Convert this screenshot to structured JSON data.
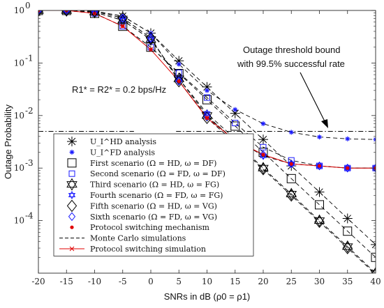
{
  "chart_data": {
    "type": "line",
    "yscale": "log",
    "xlabel": "SNRs in dB (ρ0 = ρ1)",
    "ylabel": "Outage Probability",
    "xlim": [
      -20,
      40
    ],
    "ylim": [
      1e-05,
      1
    ],
    "grid": false,
    "legend_position": "lower-left",
    "x_ticks": [
      "-20",
      "-10",
      "0",
      "10",
      "20",
      "30",
      "40"
    ],
    "x_ticks_extra": [
      "-15",
      "-5",
      "5",
      "15",
      "25",
      "35"
    ],
    "y_ticks": [
      {
        "base": "10",
        "exp": "0",
        "value": 1
      },
      {
        "base": "10",
        "exp": "-1",
        "value": 0.1
      },
      {
        "base": "10",
        "exp": "-2",
        "value": 0.01
      },
      {
        "base": "10",
        "exp": "-3",
        "value": 0.001
      },
      {
        "base": "10",
        "exp": "-4",
        "value": 0.0001
      }
    ],
    "annotations": {
      "rate_label": "R1* = R2* = 0.2 bps/Hz",
      "threshold_line1": "Outage threshold bound",
      "threshold_line2": "with 99.5% successful rate",
      "threshold_value": 0.005
    },
    "legend": [
      {
        "label": "U_I^HD analysis",
        "marker": "asterisk",
        "color": "#000000"
      },
      {
        "label": "U_I^FD analysis",
        "marker": "star",
        "color": "#1a1aff"
      },
      {
        "label": "First scenario (Ω = HD, ω = DF)",
        "marker": "square",
        "color": "#000000"
      },
      {
        "label": "Second scenario (Ω = FD, ω = DF)",
        "marker": "square",
        "color": "#1a1aff"
      },
      {
        "label": "Third scenario (Ω = HD, ω = FG)",
        "marker": "hexagram",
        "color": "#000000"
      },
      {
        "label": "Fourth scenario (Ω = FD, ω = FG)",
        "marker": "hexagram",
        "color": "#1a1aff"
      },
      {
        "label": "Fifth scenario (Ω = HD, ω = VG)",
        "marker": "diamond",
        "color": "#000000"
      },
      {
        "label": "Sixth scenario (Ω = FD, ω = VG)",
        "marker": "diamond",
        "color": "#1a1aff"
      },
      {
        "label": "Protocol switching mechanism",
        "marker": "dot",
        "color": "#e00000"
      },
      {
        "label": "Monte Carlo simulations",
        "marker": "dashed-line",
        "color": "#000000"
      },
      {
        "label": "Protocol switching simulation",
        "marker": "red-line-x",
        "color": "#e00000"
      }
    ],
    "x": [
      -20,
      -15,
      -10,
      -5,
      0,
      5,
      10,
      15,
      20,
      25,
      30,
      35,
      40
    ],
    "series": [
      {
        "name": "U_I^HD analysis",
        "marker": "asterisk",
        "color": "#000000",
        "dashed": true,
        "values": [
          1,
          1,
          0.97,
          0.78,
          0.37,
          0.11,
          0.035,
          0.011,
          0.0035,
          0.0011,
          0.00035,
          0.00011,
          3.5e-05
        ]
      },
      {
        "name": "U_I^FD analysis",
        "marker": "star",
        "color": "#1a1aff",
        "dashed": true,
        "values": [
          1,
          1,
          0.97,
          0.78,
          0.37,
          0.095,
          0.03,
          0.013,
          0.007,
          0.0048,
          0.0039,
          0.0036,
          0.0035
        ]
      },
      {
        "name": "First scenario (Ω = HD, ω = DF)",
        "marker": "square",
        "color": "#000000",
        "dashed": true,
        "values": [
          1,
          1,
          0.88,
          0.5,
          0.2,
          0.063,
          0.02,
          0.0063,
          0.002,
          0.00063,
          0.0002,
          6.3e-05,
          2e-05
        ]
      },
      {
        "name": "Second scenario (Ω = FD, ω = DF)",
        "marker": "square",
        "color": "#1a1aff",
        "dashed": true,
        "values": [
          1,
          1,
          0.88,
          0.5,
          0.2,
          0.065,
          0.022,
          0.0072,
          0.0025,
          0.0014,
          0.0011,
          0.001,
          0.001
        ]
      },
      {
        "name": "Third scenario (Ω = HD, ω = FG)",
        "marker": "hexagram",
        "color": "#000000",
        "dashed": true,
        "values": [
          1,
          1,
          0.93,
          0.65,
          0.28,
          0.05,
          0.01,
          0.0032,
          0.001,
          0.00032,
          0.0001,
          3.2e-05,
          1e-05
        ]
      },
      {
        "name": "Fourth scenario (Ω = FD, ω = FG)",
        "marker": "hexagram",
        "color": "#1a1aff",
        "dashed": true,
        "values": [
          1,
          1,
          0.93,
          0.65,
          0.28,
          0.05,
          0.011,
          0.0036,
          0.0017,
          0.0012,
          0.0011,
          0.001,
          0.001
        ]
      },
      {
        "name": "Fifth scenario (Ω = HD, ω = VG)",
        "marker": "diamond",
        "color": "#000000",
        "dashed": true,
        "values": [
          1,
          1,
          0.96,
          0.72,
          0.3,
          0.045,
          0.009,
          0.003,
          0.00095,
          0.0003,
          9.5e-05,
          3e-05,
          9.5e-06
        ]
      },
      {
        "name": "Sixth scenario (Ω = FD, ω = VG)",
        "marker": "diamond",
        "color": "#1a1aff",
        "dashed": true,
        "values": [
          1,
          1,
          0.96,
          0.72,
          0.3,
          0.045,
          0.0095,
          0.0034,
          0.0018,
          0.0012,
          0.0011,
          0.001,
          0.001
        ]
      },
      {
        "name": "Protocol switching mechanism",
        "marker": "dot",
        "color": "#e00000",
        "dashed": false,
        "values": [
          1,
          1,
          0.88,
          0.5,
          0.18,
          0.045,
          0.009,
          0.0034,
          0.0018,
          0.0012,
          0.0011,
          0.001,
          0.001
        ]
      }
    ],
    "switching_simulation": {
      "name": "Protocol switching simulation",
      "color": "#e00000",
      "values": [
        1,
        1,
        0.88,
        0.5,
        0.18,
        0.045,
        0.009,
        0.0034,
        0.0018,
        0.0012,
        0.0011,
        0.001,
        0.001
      ]
    }
  }
}
